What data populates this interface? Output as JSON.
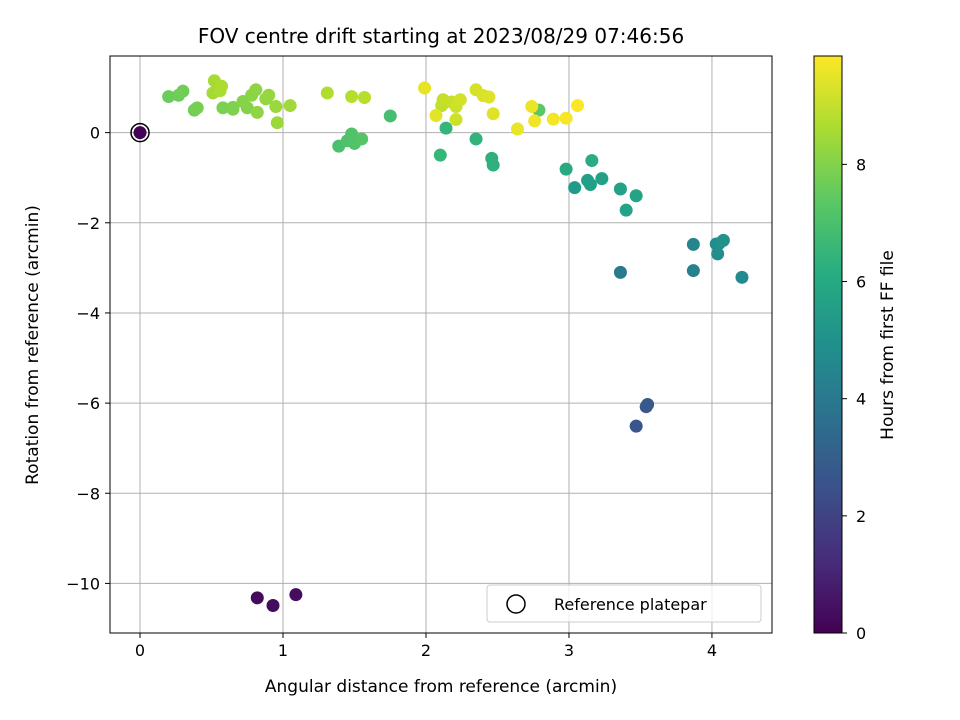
{
  "chart_data": {
    "type": "scatter",
    "title": "FOV centre drift starting at 2023/08/29 07:46:56",
    "xlabel": "Angular distance from reference (arcmin)",
    "ylabel": "Rotation from reference (arcmin)",
    "xlim": [
      -0.21,
      4.42
    ],
    "ylim": [
      -11.1,
      1.7
    ],
    "xticks": [
      0,
      1,
      2,
      3,
      4
    ],
    "yticks": [
      -10,
      -8,
      -6,
      -4,
      -2,
      0
    ],
    "xtick_labels": [
      "0",
      "1",
      "2",
      "3",
      "4"
    ],
    "ytick_labels": [
      "−10",
      "−8",
      "−6",
      "−4",
      "−2",
      "0"
    ],
    "grid": true,
    "colorbar": {
      "label": "Hours from first FF file",
      "range": [
        0,
        9.85
      ],
      "ticks": [
        0,
        2,
        4,
        6,
        8
      ],
      "tick_labels": [
        "0",
        "2",
        "4",
        "6",
        "8"
      ],
      "colormap": "viridis"
    },
    "legend": {
      "label": "Reference platepar",
      "location": "lower right"
    },
    "reference": {
      "x": 0,
      "y": 0,
      "hours": 0
    },
    "points": [
      [
        0.0,
        0.0,
        0.05
      ],
      [
        0.82,
        -10.32,
        0.25
      ],
      [
        0.93,
        -10.49,
        0.3
      ],
      [
        1.09,
        -10.25,
        0.35
      ],
      [
        3.47,
        -6.51,
        2.6
      ],
      [
        3.54,
        -6.08,
        2.7
      ],
      [
        3.55,
        -6.03,
        2.75
      ],
      [
        3.36,
        -3.1,
        4.0
      ],
      [
        3.87,
        -3.06,
        4.3
      ],
      [
        3.87,
        -2.48,
        4.5
      ],
      [
        4.21,
        -3.21,
        4.7
      ],
      [
        4.03,
        -2.47,
        4.8
      ],
      [
        4.04,
        -2.69,
        4.85
      ],
      [
        4.05,
        -2.46,
        4.9
      ],
      [
        4.08,
        -2.39,
        5.0
      ],
      [
        3.04,
        -1.22,
        5.4
      ],
      [
        3.13,
        -1.06,
        5.5
      ],
      [
        3.15,
        -1.15,
        5.55
      ],
      [
        3.23,
        -1.02,
        5.6
      ],
      [
        3.36,
        -1.25,
        5.65
      ],
      [
        3.4,
        -1.72,
        5.7
      ],
      [
        3.47,
        -1.4,
        5.75
      ],
      [
        2.98,
        -0.81,
        5.9
      ],
      [
        3.16,
        -0.62,
        6.05
      ],
      [
        2.46,
        -0.57,
        6.2
      ],
      [
        2.47,
        -0.72,
        6.25
      ],
      [
        2.35,
        -0.14,
        6.4
      ],
      [
        2.14,
        0.1,
        6.5
      ],
      [
        2.1,
        -0.5,
        6.55
      ],
      [
        1.75,
        0.37,
        6.9
      ],
      [
        1.39,
        -0.3,
        7.0
      ],
      [
        1.45,
        -0.18,
        7.05
      ],
      [
        1.48,
        -0.03,
        7.1
      ],
      [
        1.5,
        -0.24,
        7.15
      ],
      [
        1.55,
        -0.14,
        7.2
      ],
      [
        2.79,
        0.5,
        7.3
      ],
      [
        0.2,
        0.8,
        7.6
      ],
      [
        0.27,
        0.83,
        7.65
      ],
      [
        0.3,
        0.92,
        7.7
      ],
      [
        0.38,
        0.5,
        7.75
      ],
      [
        0.4,
        0.55,
        7.8
      ],
      [
        0.58,
        0.55,
        7.85
      ],
      [
        0.65,
        0.52,
        7.9
      ],
      [
        0.65,
        0.56,
        7.95
      ],
      [
        0.75,
        0.55,
        8.0
      ],
      [
        0.72,
        0.69,
        8.05
      ],
      [
        0.78,
        0.83,
        8.1
      ],
      [
        0.81,
        0.95,
        8.15
      ],
      [
        0.82,
        0.45,
        8.2
      ],
      [
        0.88,
        0.75,
        8.25
      ],
      [
        0.9,
        0.83,
        8.3
      ],
      [
        0.95,
        0.58,
        8.35
      ],
      [
        0.96,
        0.22,
        8.4
      ],
      [
        1.05,
        0.6,
        8.45
      ],
      [
        0.51,
        0.88,
        8.5
      ],
      [
        0.52,
        1.15,
        8.55
      ],
      [
        0.56,
        0.93,
        8.6
      ],
      [
        0.57,
        1.03,
        8.65
      ],
      [
        1.31,
        0.88,
        8.7
      ],
      [
        1.48,
        0.8,
        8.75
      ],
      [
        1.57,
        0.78,
        8.8
      ],
      [
        2.11,
        0.6,
        8.9
      ],
      [
        2.12,
        0.73,
        9.0
      ],
      [
        2.18,
        0.68,
        9.05
      ],
      [
        2.21,
        0.58,
        9.1
      ],
      [
        2.21,
        0.29,
        9.15
      ],
      [
        2.24,
        0.73,
        9.2
      ],
      [
        2.35,
        0.95,
        9.25
      ],
      [
        2.4,
        0.82,
        9.3
      ],
      [
        2.44,
        0.79,
        9.35
      ],
      [
        2.47,
        0.42,
        9.4
      ],
      [
        2.07,
        0.38,
        9.45
      ],
      [
        1.99,
        0.99,
        9.5
      ],
      [
        2.64,
        0.08,
        9.55
      ],
      [
        2.74,
        0.58,
        9.6
      ],
      [
        2.76,
        0.26,
        9.65
      ],
      [
        2.89,
        0.3,
        9.7
      ],
      [
        2.98,
        0.32,
        9.75
      ],
      [
        3.06,
        0.6,
        9.8
      ]
    ]
  }
}
